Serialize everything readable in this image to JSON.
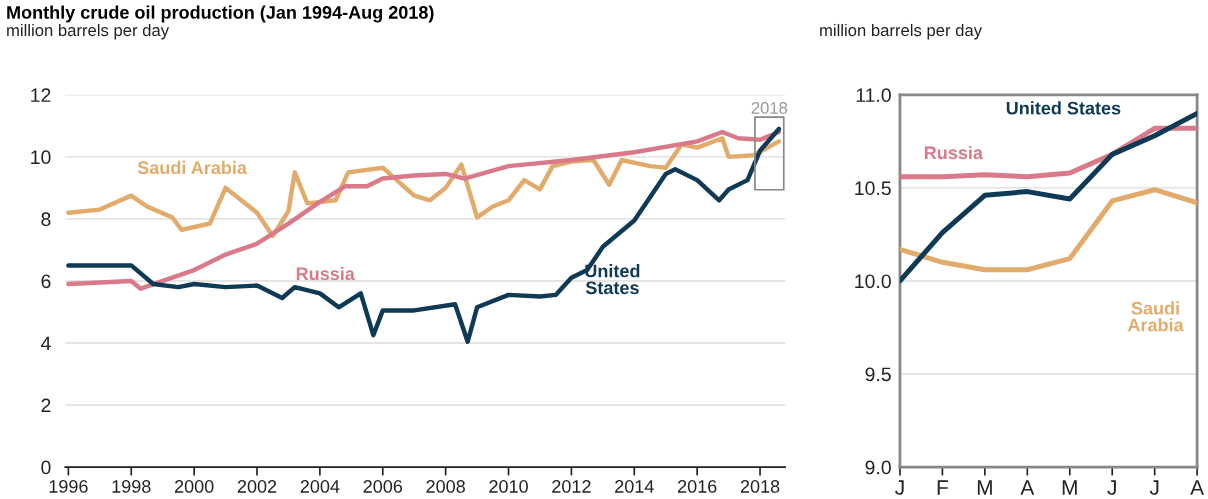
{
  "chart_data": [
    {
      "type": "line",
      "title": "Monthly crude oil production (Jan 1994-Aug 2018)",
      "subtitle": "million barrels per day",
      "xlim": [
        1995.9,
        2018.8
      ],
      "xticks": [
        1996,
        1998,
        2000,
        2002,
        2004,
        2006,
        2008,
        2010,
        2012,
        2014,
        2016,
        2018
      ],
      "ylim": [
        0,
        12
      ],
      "yticks": [
        0,
        2,
        4,
        6,
        8,
        10,
        12
      ],
      "grid": "y",
      "legend": false,
      "annotations": [
        "2018"
      ],
      "series": [
        {
          "name": "Saudi Arabia",
          "color": "#e3ab6b",
          "x": [
            1996,
            1997,
            1998,
            1998.5,
            1999.3,
            1999.6,
            2000.5,
            2001,
            2001.5,
            2002,
            2002.5,
            2003,
            2003.2,
            2003.6,
            2004.5,
            2004.9,
            2006,
            2007,
            2007.5,
            2008,
            2008.5,
            2009,
            2009.5,
            2010,
            2010.5,
            2011,
            2011.4,
            2012,
            2012.7,
            2013.2,
            2013.6,
            2014.5,
            2015,
            2015.5,
            2016,
            2016.8,
            2017,
            2017.8,
            2018.6
          ],
          "values": [
            8.2,
            8.3,
            8.75,
            8.4,
            8.05,
            7.65,
            7.85,
            9.0,
            8.6,
            8.2,
            7.45,
            8.25,
            9.5,
            8.5,
            8.6,
            9.5,
            9.65,
            8.75,
            8.6,
            9.0,
            9.75,
            8.05,
            8.4,
            8.6,
            9.25,
            8.95,
            9.7,
            9.85,
            9.9,
            9.1,
            9.9,
            9.7,
            9.65,
            10.4,
            10.3,
            10.6,
            10.0,
            10.05,
            10.5
          ]
        },
        {
          "name": "Russia",
          "color": "#d9798a",
          "x": [
            1996,
            1998,
            1998.3,
            1999,
            2000,
            2001,
            2002,
            2003,
            2004,
            2004.8,
            2005.5,
            2006,
            2007,
            2008,
            2008.6,
            2010,
            2012,
            2014,
            2016,
            2016.8,
            2017.3,
            2018,
            2018.6
          ],
          "values": [
            5.9,
            6.0,
            5.75,
            6.0,
            6.35,
            6.85,
            7.2,
            7.85,
            8.55,
            9.05,
            9.05,
            9.3,
            9.4,
            9.45,
            9.3,
            9.7,
            9.9,
            10.15,
            10.5,
            10.8,
            10.6,
            10.55,
            10.8
          ]
        },
        {
          "name": "United States",
          "color": "#0f3a55",
          "x": [
            1996,
            1998,
            1998.7,
            1999.5,
            2000,
            2001,
            2002,
            2002.8,
            2003.2,
            2004,
            2004.6,
            2005.3,
            2005.7,
            2006,
            2007,
            2008.3,
            2008.7,
            2009,
            2010,
            2011,
            2011.5,
            2012,
            2012.5,
            2013,
            2014,
            2015,
            2015.3,
            2016,
            2016.7,
            2017,
            2017.6,
            2018,
            2018.6
          ],
          "values": [
            6.5,
            6.5,
            5.9,
            5.8,
            5.9,
            5.8,
            5.85,
            5.45,
            5.8,
            5.6,
            5.15,
            5.6,
            4.25,
            5.05,
            5.05,
            5.25,
            4.04,
            5.15,
            5.55,
            5.5,
            5.55,
            6.1,
            6.35,
            7.1,
            7.95,
            9.45,
            9.6,
            9.25,
            8.6,
            8.95,
            9.25,
            10.2,
            10.9
          ]
        }
      ]
    },
    {
      "type": "line",
      "subtitle": "million barrels per day",
      "categories": [
        "J",
        "F",
        "M",
        "A",
        "M",
        "J",
        "J",
        "A"
      ],
      "ylim": [
        9.0,
        11.0
      ],
      "yticks": [
        {
          "value": 9.0,
          "label": "9.0"
        },
        {
          "value": 9.5,
          "label": "9.5"
        },
        {
          "value": 10.0,
          "label": "10.0"
        },
        {
          "value": 10.5,
          "label": "10.5"
        },
        {
          "value": 11.0,
          "label": "11.0"
        }
      ],
      "grid": "y",
      "legend": false,
      "series": [
        {
          "name": "Saudi Arabia",
          "color": "#e3ab6b",
          "values": [
            10.17,
            10.1,
            10.06,
            10.06,
            10.12,
            10.43,
            10.49,
            10.42
          ]
        },
        {
          "name": "Russia",
          "color": "#d9798a",
          "values": [
            10.56,
            10.56,
            10.57,
            10.56,
            10.58,
            10.68,
            10.82,
            10.82
          ]
        },
        {
          "name": "United States",
          "color": "#0f3a55",
          "values": [
            10.0,
            10.26,
            10.46,
            10.48,
            10.44,
            10.68,
            10.78,
            10.9
          ]
        }
      ]
    }
  ]
}
